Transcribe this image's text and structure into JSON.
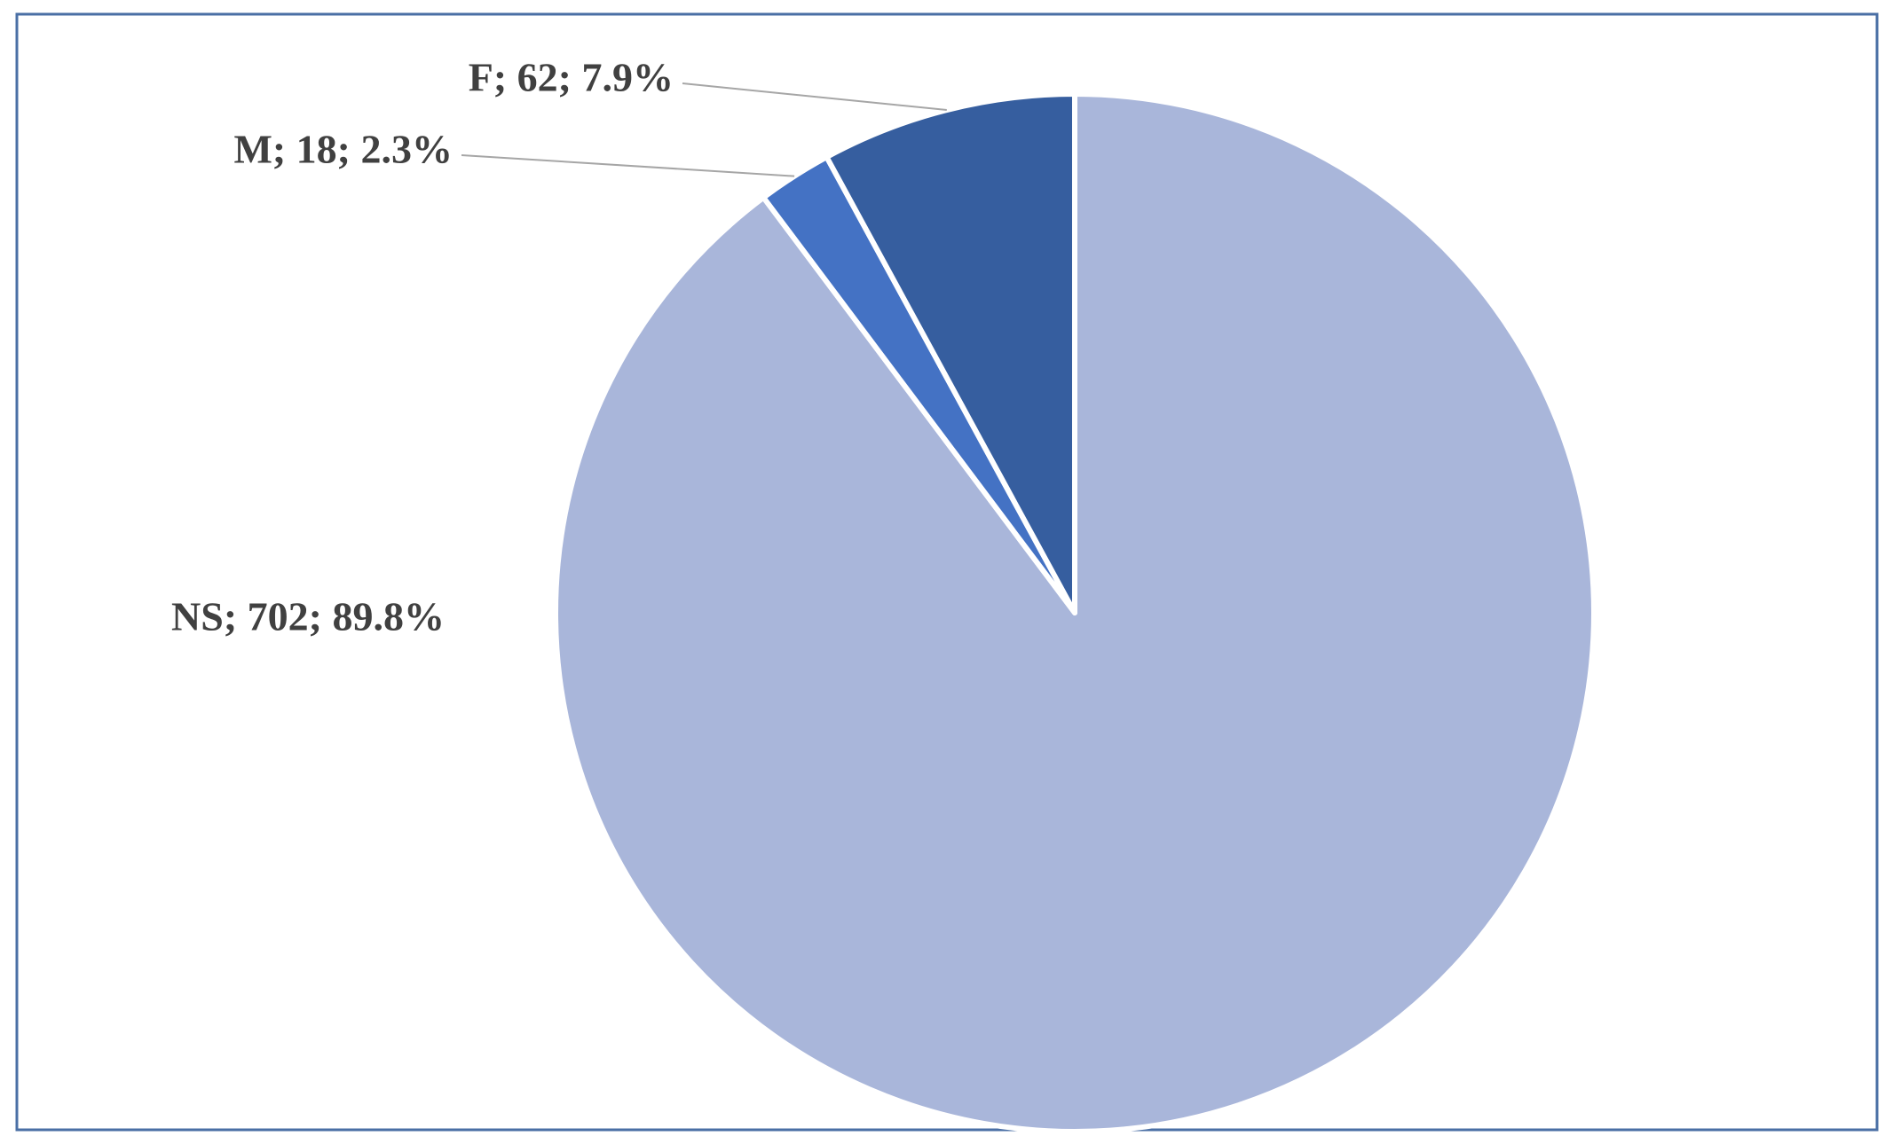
{
  "chart_data": {
    "type": "pie",
    "categories": [
      "NS",
      "M",
      "F"
    ],
    "values": [
      702,
      18,
      62
    ],
    "value_labels": [
      "NS; 702; 89.8%",
      "M; 18; 2.3%",
      "F; 62; 7.9%"
    ],
    "colors": [
      "#a9b6da",
      "#4472c4",
      "#365e9f"
    ]
  }
}
